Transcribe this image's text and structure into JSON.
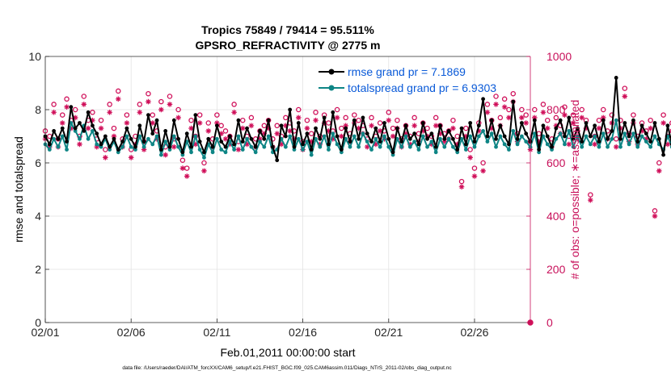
{
  "chart_data": {
    "type": "line",
    "title_line1": "Tropics 75849 / 79414 = 95.511%",
    "title_line2": "GPSRO_REFRACTIVITY @ 2775 m",
    "xlabel": "Feb.01,2011 00:00:00 start",
    "ylabel_left": "rmse and totalspread",
    "ylabel_right": "# of obs: o=possible; ∗=assimilated",
    "footer": "data file: /Users/raeder/DAI/ATM_forcXX/CAM6_setup/f.e21.FHIST_BGC.f09_025.CAM6assim.011/Diags_NTrS_2011-02/obs_diag_output.nc",
    "x_ticks": [
      "02/01",
      "02/06",
      "02/11",
      "02/16",
      "02/21",
      "02/26"
    ],
    "x_tick_days": [
      1,
      6,
      11,
      16,
      21,
      26
    ],
    "xlim_days": [
      1,
      29.25
    ],
    "ylim_left": [
      0,
      10
    ],
    "y_ticks_left": [
      "0",
      "2",
      "4",
      "6",
      "8",
      "10"
    ],
    "ylim_right": [
      0,
      1000
    ],
    "y_ticks_right": [
      "0",
      "200",
      "400",
      "600",
      "800",
      "1000"
    ],
    "legend": [
      {
        "name": "rmse",
        "label": "rmse grand pr = 7.1869",
        "color": "#000000"
      },
      {
        "name": "totalspread",
        "label": "totalspread grand pr = 6.9303",
        "color": "#008080"
      }
    ],
    "legend_placement": "top-right",
    "grid": true,
    "colors": {
      "rmse": "#000000",
      "totalspread": "#0e8585",
      "obs": "#d0105a",
      "legend_text": "#0a5ad8",
      "right_axis": "#c8105a"
    },
    "time_step_days": 0.25,
    "series": [
      {
        "name": "rmse",
        "values": [
          7.0,
          6.7,
          7.2,
          6.9,
          7.3,
          6.8,
          8.1,
          7.3,
          7.5,
          7.2,
          7.9,
          7.4,
          7.1,
          6.7,
          7.0,
          6.6,
          6.9,
          6.5,
          6.8,
          7.3,
          6.9,
          6.6,
          7.4,
          6.8,
          7.8,
          7.1,
          7.6,
          6.5,
          7.2,
          6.6,
          7.6,
          6.9,
          6.4,
          7.1,
          6.6,
          7.8,
          6.8,
          6.4,
          6.9,
          6.6,
          7.4,
          6.8,
          6.6,
          7.0,
          6.7,
          7.6,
          6.8,
          7.3,
          6.9,
          6.6,
          7.2,
          6.9,
          7.6,
          6.6,
          6.1,
          7.4,
          7.0,
          8.0,
          6.6,
          7.5,
          6.7,
          7.1,
          6.5,
          7.3,
          6.9,
          7.7,
          6.7,
          7.9,
          7.0,
          6.5,
          7.3,
          6.8,
          7.6,
          6.9,
          7.7,
          7.1,
          6.8,
          7.3,
          6.8,
          7.5,
          6.9,
          6.4,
          7.3,
          6.8,
          7.4,
          6.9,
          7.1,
          6.7,
          7.5,
          6.9,
          7.1,
          6.6,
          7.4,
          6.9,
          7.2,
          6.9,
          6.5,
          7.3,
          6.7,
          7.5,
          6.8,
          7.4,
          8.4,
          7.0,
          7.6,
          6.9,
          7.4,
          7.0,
          6.7,
          8.3,
          6.9,
          7.5,
          7.1,
          6.8,
          7.6,
          6.5,
          7.4,
          7.0,
          6.6,
          7.3,
          7.6,
          7.0,
          7.7,
          6.9,
          7.3,
          6.8,
          7.5,
          7.0,
          7.4,
          6.8,
          7.6,
          6.9,
          7.2,
          9.2,
          6.9,
          7.5,
          7.0,
          7.6,
          6.8,
          7.4,
          7.1,
          6.8,
          7.5,
          6.9,
          6.3,
          7.4,
          6.7,
          7.5,
          7.0,
          6.9,
          7.6,
          7.2,
          6.8,
          7.5,
          6.9,
          7.3,
          8.0,
          7.0,
          7.6,
          6.8,
          7.4,
          7.0,
          6.8,
          7.2,
          6.9,
          7.5,
          7.1,
          7.6,
          7.0,
          7.3,
          6.9,
          7.1,
          7.5,
          6.5,
          7.3,
          6.9,
          7.4,
          8.0,
          6.9,
          7.6,
          6.7,
          7.3,
          6.9,
          7.5,
          7.0,
          6.9,
          7.6,
          6.9,
          7.2,
          7.4,
          7.0,
          7.4,
          7.2,
          7.1,
          7.6,
          6.8,
          7.3,
          7.0,
          6.6,
          7.3,
          7.6,
          7.0,
          7.9,
          7.0,
          7.6
        ]
      },
      {
        "name": "totalspread",
        "values": [
          6.7,
          6.5,
          6.9,
          6.6,
          7.0,
          6.5,
          7.5,
          7.2,
          6.9,
          7.4,
          6.9,
          7.2,
          6.7,
          6.6,
          6.9,
          6.5,
          6.8,
          6.4,
          6.6,
          7.0,
          6.6,
          6.5,
          7.0,
          6.6,
          6.9,
          6.7,
          7.0,
          6.3,
          6.8,
          6.5,
          7.0,
          6.6,
          6.3,
          6.8,
          6.4,
          7.0,
          6.5,
          6.2,
          6.7,
          6.4,
          6.9,
          6.5,
          6.4,
          6.8,
          6.5,
          7.0,
          6.5,
          6.9,
          6.6,
          6.4,
          6.8,
          6.6,
          7.0,
          6.4,
          6.5,
          6.9,
          6.6,
          7.0,
          6.5,
          6.9,
          6.5,
          6.8,
          6.3,
          6.9,
          6.6,
          7.0,
          6.5,
          7.1,
          6.7,
          6.4,
          6.9,
          6.6,
          7.0,
          6.6,
          7.1,
          6.8,
          6.5,
          6.9,
          6.6,
          7.0,
          6.6,
          6.3,
          6.9,
          6.6,
          7.0,
          6.6,
          6.8,
          6.5,
          7.0,
          6.6,
          6.8,
          6.4,
          6.9,
          6.6,
          6.9,
          6.6,
          6.4,
          6.9,
          6.5,
          7.0,
          6.6,
          7.0,
          7.2,
          6.8,
          7.1,
          6.6,
          7.0,
          6.7,
          6.5,
          7.2,
          6.7,
          7.0,
          6.8,
          6.6,
          7.1,
          6.4,
          7.0,
          6.7,
          6.5,
          6.9,
          7.1,
          6.7,
          7.2,
          6.6,
          7.0,
          6.6,
          7.0,
          6.7,
          7.0,
          6.6,
          7.1,
          6.6,
          6.9,
          7.6,
          6.6,
          7.1,
          6.7,
          7.1,
          6.6,
          7.0,
          6.8,
          6.6,
          7.0,
          6.7,
          6.5,
          7.0,
          6.6,
          7.0,
          6.7,
          6.7,
          7.1,
          6.9,
          6.6,
          7.0,
          6.7,
          7.0,
          7.3,
          6.8,
          7.1,
          6.6,
          7.0,
          6.8,
          6.6,
          6.9,
          6.7,
          7.0,
          6.8,
          7.1,
          6.8,
          7.0,
          6.7,
          6.9,
          7.1,
          6.5,
          7.0,
          6.7,
          7.1,
          7.4,
          6.8,
          7.2,
          6.6,
          7.0,
          6.7,
          7.1,
          6.8,
          6.7,
          7.2,
          6.7,
          6.9,
          7.1,
          6.8,
          7.1,
          7.0,
          6.9,
          7.2,
          6.7,
          7.0,
          6.8,
          6.6,
          7.0,
          7.3,
          6.8,
          7.4,
          6.8,
          7.2
        ]
      },
      {
        "name": "obs_possible",
        "axis": "right",
        "values": [
          720,
          700,
          820,
          690,
          780,
          840,
          760,
          800,
          700,
          850,
          760,
          790,
          690,
          760,
          650,
          820,
          730,
          870,
          690,
          780,
          650,
          700,
          820,
          680,
          860,
          780,
          720,
          830,
          660,
          850,
          690,
          800,
          610,
          580,
          760,
          700,
          780,
          600,
          750,
          690,
          780,
          740,
          720,
          700,
          820,
          680,
          760,
          700,
          770,
          690,
          720,
          740,
          760,
          690,
          740,
          700,
          770,
          750,
          720,
          800,
          680,
          760,
          710,
          790,
          700,
          780,
          750,
          720,
          800,
          730,
          770,
          710,
          780,
          760,
          740,
          690,
          770,
          700,
          750,
          720,
          790,
          730,
          760,
          690,
          740,
          700,
          770,
          710,
          750,
          730,
          700,
          770,
          740,
          710,
          720,
          760,
          700,
          530,
          730,
          650,
          580,
          750,
          600,
          820,
          760,
          850,
          770,
          840,
          800,
          860,
          710,
          800,
          780,
          680,
          800,
          710,
          820,
          760,
          690,
          770,
          740,
          810,
          700,
          780,
          720,
          800,
          760,
          480,
          700,
          760,
          800,
          720,
          780,
          690,
          760,
          880,
          710,
          780,
          700,
          750,
          720,
          760,
          420,
          600,
          780,
          700,
          750,
          720,
          790,
          760,
          800,
          730,
          840,
          760,
          810,
          720,
          850,
          770,
          830,
          720,
          820,
          750,
          830,
          730,
          780,
          720,
          740,
          700,
          850,
          760,
          830,
          760,
          800,
          700,
          840,
          760,
          810,
          720,
          790,
          740,
          820,
          700,
          450,
          410,
          760,
          720,
          800,
          700,
          760,
          720,
          690,
          760,
          720,
          700,
          760,
          700,
          780,
          740,
          720,
          700,
          760,
          740,
          700
        ]
      },
      {
        "name": "obs_assimilated",
        "axis": "right",
        "values": [
          690,
          660,
          790,
          660,
          750,
          810,
          730,
          770,
          670,
          820,
          730,
          760,
          660,
          730,
          620,
          790,
          700,
          840,
          660,
          750,
          620,
          670,
          790,
          650,
          830,
          750,
          690,
          800,
          630,
          820,
          660,
          770,
          580,
          550,
          730,
          670,
          750,
          570,
          720,
          660,
          750,
          710,
          690,
          670,
          790,
          650,
          730,
          670,
          740,
          660,
          690,
          710,
          730,
          660,
          710,
          670,
          740,
          720,
          690,
          770,
          650,
          730,
          680,
          760,
          670,
          750,
          720,
          690,
          770,
          700,
          740,
          680,
          750,
          730,
          710,
          660,
          740,
          670,
          720,
          690,
          760,
          700,
          730,
          660,
          710,
          670,
          740,
          680,
          720,
          700,
          670,
          740,
          710,
          680,
          690,
          730,
          670,
          510,
          700,
          620,
          550,
          720,
          570,
          790,
          730,
          820,
          740,
          810,
          770,
          830,
          680,
          770,
          750,
          650,
          770,
          680,
          790,
          730,
          660,
          740,
          710,
          780,
          670,
          750,
          690,
          770,
          730,
          460,
          670,
          730,
          770,
          690,
          750,
          660,
          730,
          850,
          680,
          750,
          670,
          720,
          690,
          730,
          400,
          570,
          750,
          670,
          720,
          690,
          760,
          730,
          770,
          700,
          810,
          730,
          780,
          690,
          820,
          740,
          800,
          690,
          790,
          720,
          800,
          700,
          750,
          690,
          710,
          670,
          820,
          730,
          800,
          730,
          770,
          670,
          810,
          730,
          780,
          690,
          760,
          710,
          790,
          670,
          420,
          400,
          730,
          690,
          770,
          670,
          730,
          690,
          660,
          730,
          690,
          670,
          730,
          670,
          750,
          710,
          690,
          670,
          730,
          710,
          670
        ]
      }
    ],
    "final_point": {
      "x_day": 29.25,
      "value": 0,
      "axis": "right"
    }
  }
}
